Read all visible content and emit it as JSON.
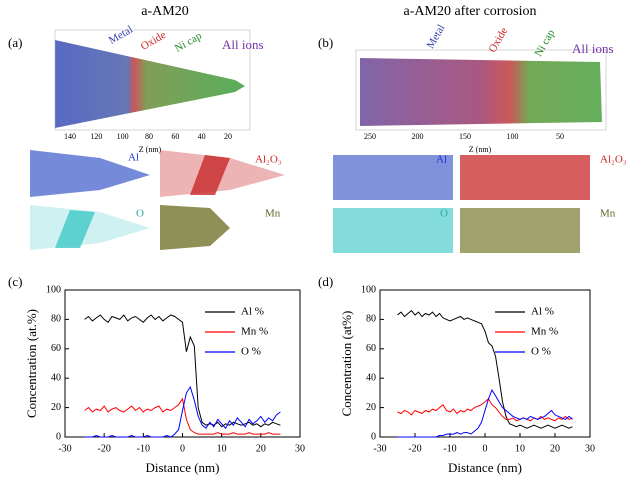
{
  "figure": {
    "left": {
      "title": "a-AM20",
      "panel": "(a)",
      "labels": [
        "Metal",
        "Oxide",
        "Ni cap",
        "All ions"
      ],
      "axis_label": "Z (nm)",
      "axis_ticks": [
        "140",
        "120",
        "100",
        "80",
        "60",
        "40",
        "20"
      ],
      "maps": [
        "Al",
        "Al₂O₃",
        "O",
        "Mn"
      ]
    },
    "right": {
      "title": "a-AM20 after corrosion",
      "panel": "(b)",
      "labels": [
        "Metal",
        "Oxide",
        "Ni cap",
        "All ions"
      ],
      "axis_label": "Z (nm)",
      "axis_ticks": [
        "250",
        "200",
        "150",
        "100",
        "50"
      ],
      "maps": [
        "Al",
        "Al₂O₃",
        "O",
        "Mn"
      ]
    },
    "chart_panels": [
      "(c)",
      "(d)"
    ]
  },
  "chart_data": [
    {
      "type": "line",
      "xlabel": "Distance (nm)",
      "ylabel": "Concentration (at.%)",
      "xlim": [
        -30,
        30
      ],
      "xticks": [
        -30,
        -20,
        -10,
        0,
        10,
        20,
        30
      ],
      "ylim": [
        0,
        100
      ],
      "yticks": [
        0,
        20,
        40,
        60,
        80,
        100
      ],
      "legend": "upper right",
      "x": [
        -25,
        -24,
        -23,
        -22,
        -21,
        -20,
        -19,
        -18,
        -17,
        -16,
        -15,
        -14,
        -13,
        -12,
        -11,
        -10,
        -9,
        -8,
        -7,
        -6,
        -5,
        -4,
        -3,
        -2,
        -1,
        0,
        1,
        2,
        3,
        4,
        5,
        6,
        7,
        8,
        9,
        10,
        11,
        12,
        13,
        14,
        15,
        16,
        17,
        18,
        19,
        20,
        21,
        22,
        23,
        24,
        25
      ],
      "series": [
        {
          "name": "Al %",
          "color": "#000000",
          "values": [
            80,
            82,
            79,
            81,
            83,
            80,
            78,
            82,
            81,
            80,
            83,
            79,
            81,
            82,
            80,
            78,
            81,
            83,
            80,
            82,
            79,
            81,
            83,
            82,
            80,
            78,
            58,
            68,
            62,
            20,
            10,
            8,
            9,
            8,
            10,
            7,
            9,
            8,
            10,
            9,
            8,
            9,
            10,
            8,
            9,
            7,
            9,
            8,
            10,
            9,
            8
          ]
        },
        {
          "name": "Mn %",
          "color": "#ff0000",
          "values": [
            18,
            20,
            17,
            19,
            18,
            21,
            17,
            19,
            20,
            18,
            17,
            19,
            21,
            18,
            20,
            17,
            19,
            18,
            20,
            21,
            17,
            19,
            18,
            20,
            22,
            26,
            12,
            5,
            3,
            2,
            2,
            2,
            2,
            2,
            3,
            2,
            2,
            2,
            3,
            2,
            2,
            2,
            3,
            2,
            2,
            2,
            2,
            3,
            2,
            2,
            2
          ]
        },
        {
          "name": "O %",
          "color": "#0000ff",
          "values": [
            0,
            0,
            0,
            1,
            0,
            0,
            0,
            1,
            0,
            0,
            0,
            0,
            1,
            0,
            0,
            0,
            1,
            0,
            0,
            0,
            0,
            1,
            0,
            2,
            5,
            18,
            30,
            34,
            25,
            14,
            8,
            6,
            10,
            7,
            12,
            9,
            6,
            11,
            8,
            13,
            10,
            7,
            12,
            9,
            11,
            14,
            10,
            13,
            11,
            15,
            17
          ]
        }
      ]
    },
    {
      "type": "line",
      "xlabel": "Distance (nm)",
      "ylabel": "Concentration (at%)",
      "xlim": [
        -30,
        30
      ],
      "xticks": [
        -30,
        -20,
        -10,
        0,
        10,
        20,
        30
      ],
      "ylim": [
        0,
        100
      ],
      "yticks": [
        0,
        20,
        40,
        60,
        80,
        100
      ],
      "legend": "upper right",
      "x": [
        -25,
        -24,
        -23,
        -22,
        -21,
        -20,
        -19,
        -18,
        -17,
        -16,
        -15,
        -14,
        -13,
        -12,
        -11,
        -10,
        -9,
        -8,
        -7,
        -6,
        -5,
        -4,
        -3,
        -2,
        -1,
        0,
        1,
        2,
        3,
        4,
        5,
        6,
        7,
        8,
        9,
        10,
        11,
        12,
        13,
        14,
        15,
        16,
        17,
        18,
        19,
        20,
        21,
        22,
        23,
        24,
        25
      ],
      "series": [
        {
          "name": "Al %",
          "color": "#000000",
          "values": [
            83,
            85,
            82,
            84,
            86,
            83,
            85,
            82,
            84,
            83,
            85,
            82,
            84,
            81,
            80,
            79,
            80,
            81,
            82,
            80,
            81,
            80,
            79,
            78,
            77,
            72,
            64,
            62,
            55,
            40,
            24,
            14,
            9,
            8,
            7,
            8,
            7,
            6,
            7,
            8,
            7,
            6,
            7,
            8,
            7,
            6,
            7,
            8,
            7,
            6,
            7
          ]
        },
        {
          "name": "Mn %",
          "color": "#ff0000",
          "values": [
            17,
            16,
            18,
            17,
            15,
            18,
            17,
            16,
            18,
            17,
            19,
            18,
            20,
            22,
            18,
            17,
            19,
            16,
            18,
            17,
            19,
            18,
            20,
            21,
            22,
            24,
            26,
            22,
            20,
            17,
            14,
            12,
            12,
            13,
            11,
            12,
            13,
            12,
            11,
            13,
            12,
            14,
            12,
            13,
            12,
            11,
            13,
            12,
            14,
            12,
            13
          ]
        },
        {
          "name": "O %",
          "color": "#0000ff",
          "values": [
            0,
            0,
            0,
            0,
            0,
            0,
            0,
            0,
            0,
            0,
            0,
            0,
            1,
            1,
            2,
            2,
            2,
            3,
            2,
            3,
            3,
            2,
            4,
            6,
            10,
            18,
            26,
            32,
            28,
            24,
            20,
            18,
            16,
            14,
            13,
            12,
            13,
            12,
            14,
            13,
            12,
            13,
            14,
            16,
            18,
            15,
            14,
            13,
            12,
            14,
            12
          ]
        }
      ]
    }
  ]
}
